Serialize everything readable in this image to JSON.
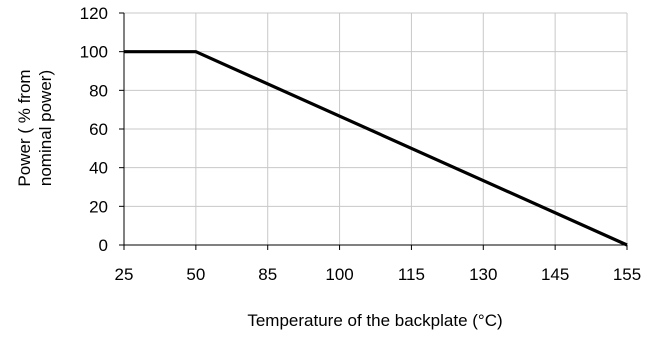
{
  "chart_data": {
    "type": "line",
    "title": "",
    "xlabel": "Temperature of the backplate (°C)",
    "ylabel_lines": [
      "Power ( % from",
      "nominal power)"
    ],
    "x_ticks": [
      "25",
      "50",
      "85",
      "100",
      "115",
      "130",
      "145",
      "155"
    ],
    "y_ticks": [
      0,
      20,
      40,
      60,
      80,
      100,
      120
    ],
    "ylim": [
      0,
      120
    ],
    "grid": true,
    "legend": "none",
    "line_color": "#000000",
    "grid_color": "#c8c8c8",
    "series": [
      {
        "x": [
          "25",
          "50",
          "155"
        ],
        "values": [
          100,
          100,
          0
        ]
      }
    ]
  }
}
